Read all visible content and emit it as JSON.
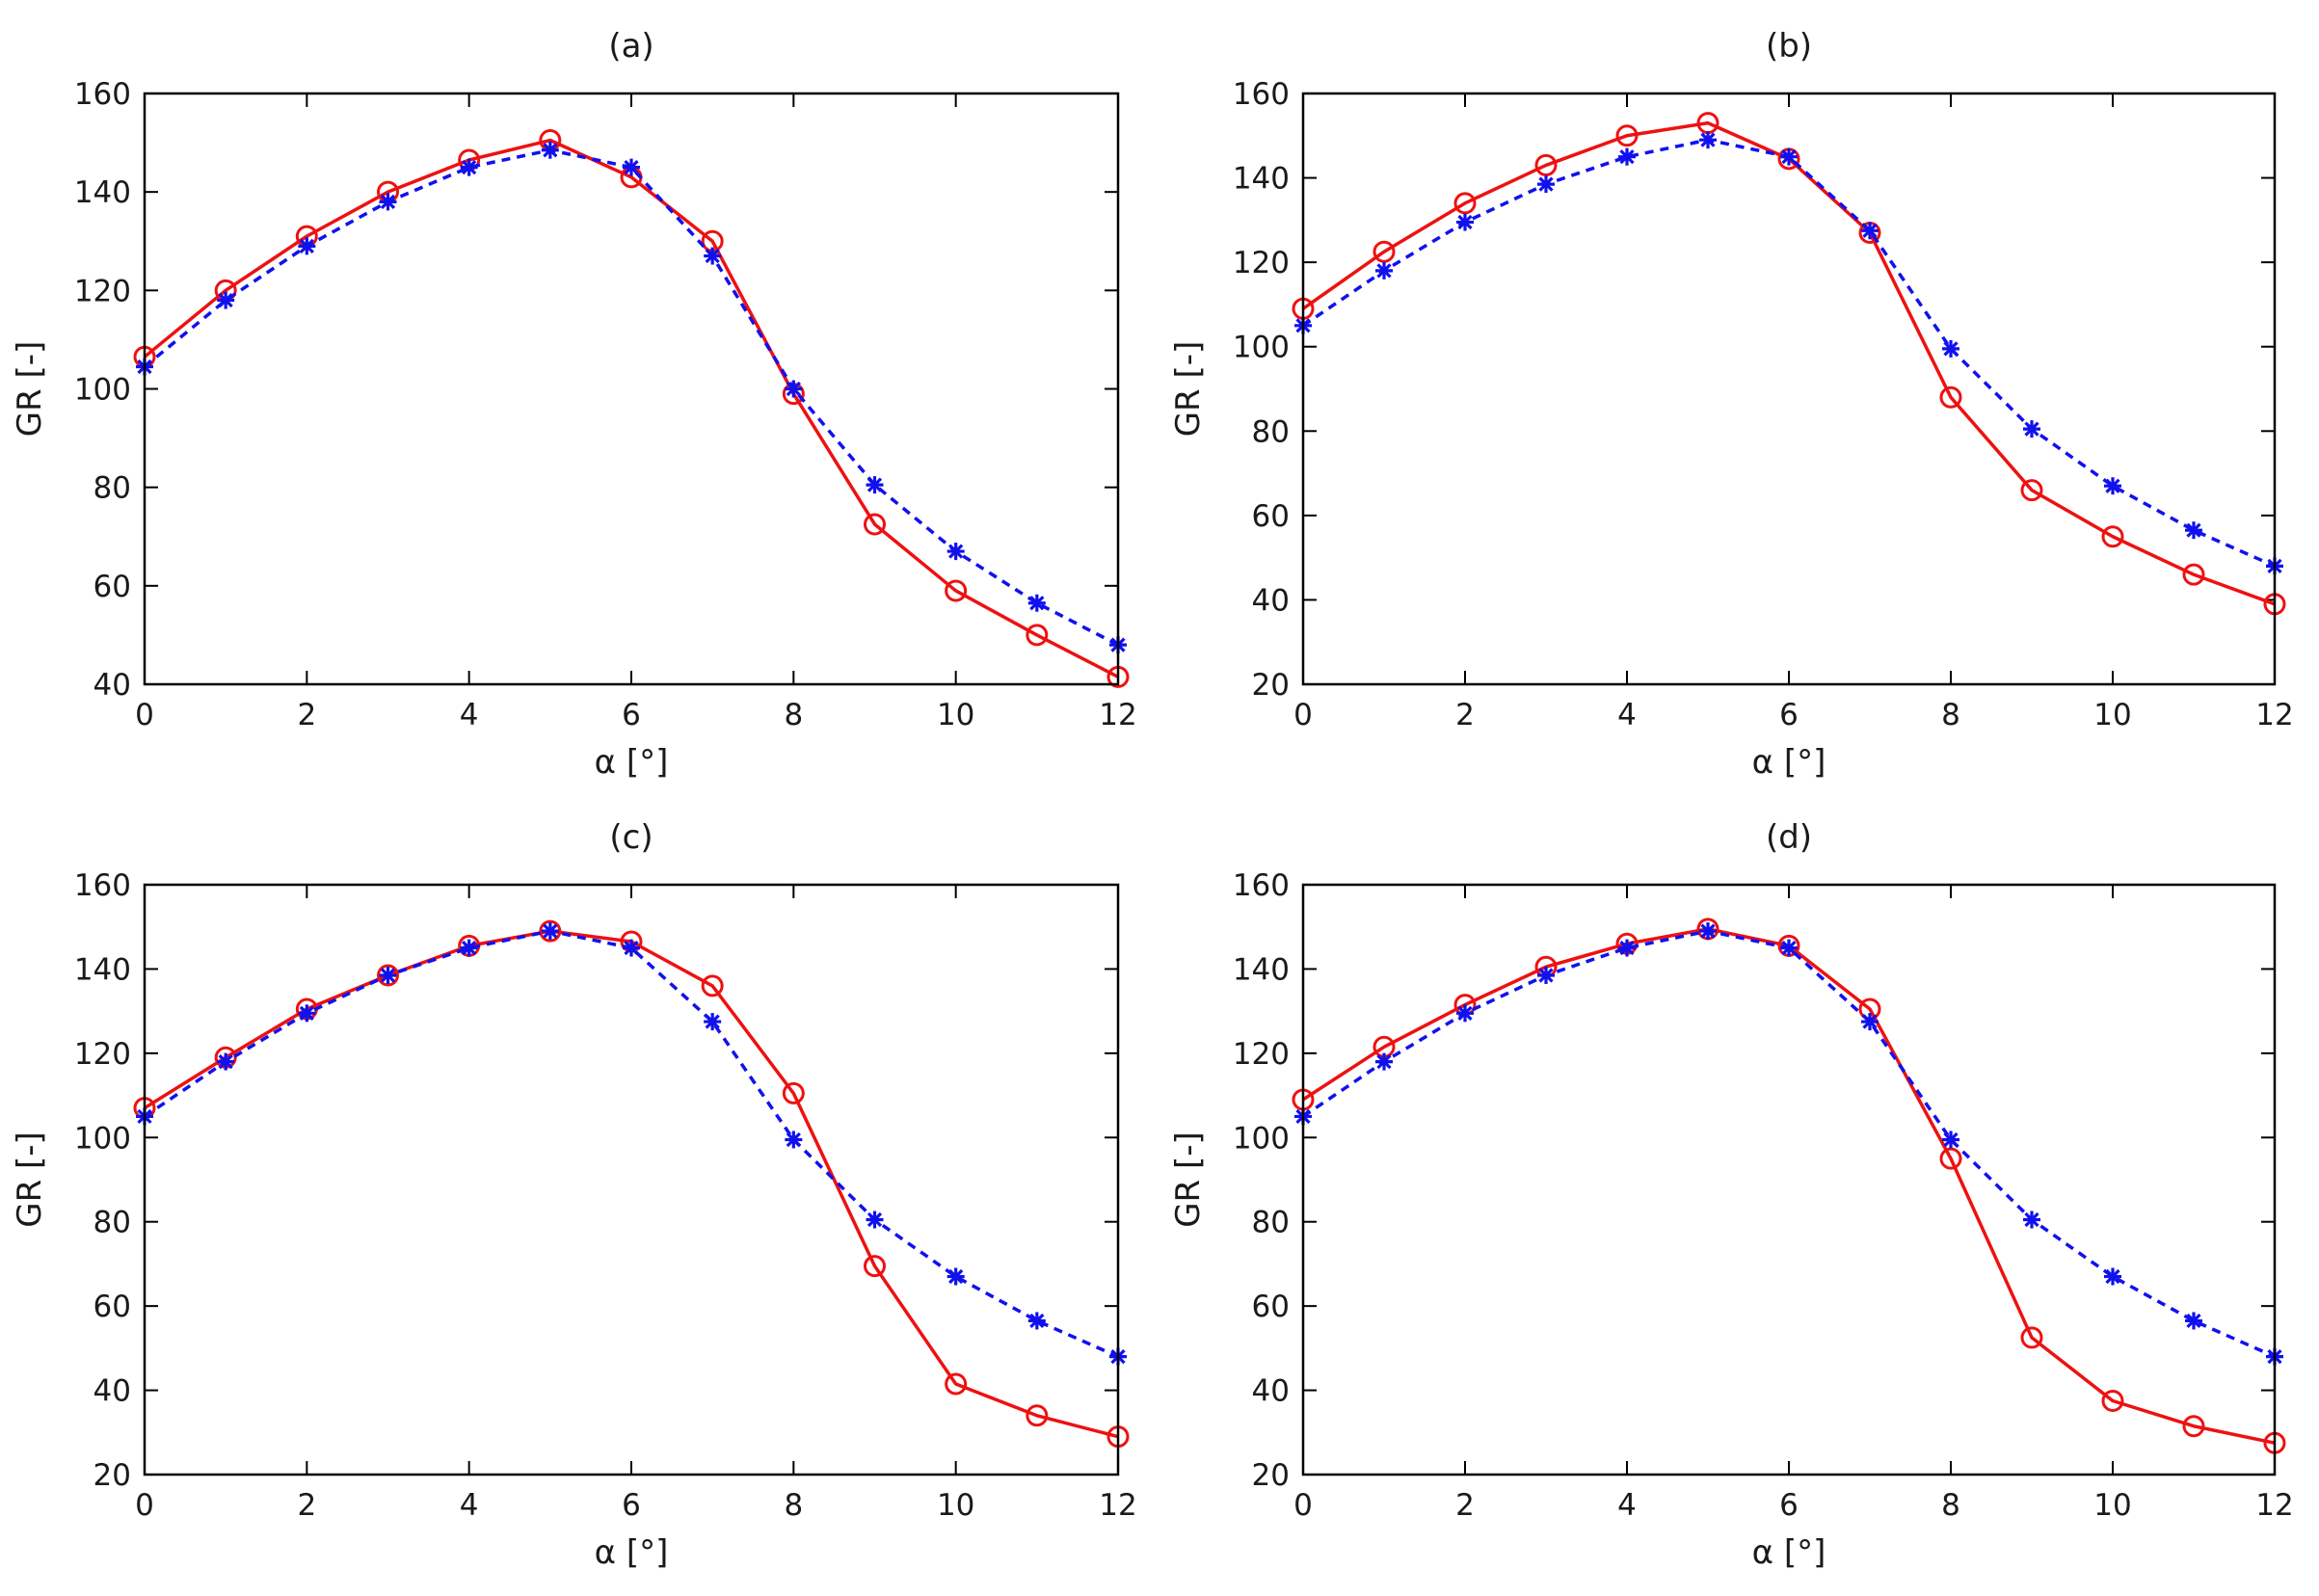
{
  "figure": {
    "colors": {
      "series1": "#ee1111",
      "series2": "#1111ee",
      "axis": "#000000"
    }
  },
  "chart_data": [
    {
      "type": "line",
      "title": "(a)",
      "xlabel": "α [°]",
      "ylabel": "GR [-]",
      "xlim": [
        0,
        12
      ],
      "ylim": [
        40,
        160
      ],
      "xticks": [
        0,
        2,
        4,
        6,
        8,
        10,
        12
      ],
      "yticks": [
        40,
        60,
        80,
        100,
        120,
        140,
        160
      ],
      "x": [
        0,
        1,
        2,
        3,
        4,
        5,
        6,
        7,
        8,
        9,
        10,
        11,
        12
      ],
      "series": [
        {
          "style": "solid-circle",
          "color": "#ee1111",
          "values": [
            106.5,
            120,
            131,
            140,
            146.5,
            150.5,
            143,
            130,
            99,
            72.5,
            59,
            50,
            41.5
          ]
        },
        {
          "style": "dashed-asterisk",
          "color": "#1111ee",
          "values": [
            104.5,
            118,
            129,
            138,
            145,
            148.5,
            145,
            127,
            100,
            80.5,
            67,
            56.5,
            48
          ]
        }
      ]
    },
    {
      "type": "line",
      "title": "(b)",
      "xlabel": "α [°]",
      "ylabel": "GR [-]",
      "xlim": [
        0,
        12
      ],
      "ylim": [
        20,
        160
      ],
      "xticks": [
        0,
        2,
        4,
        6,
        8,
        10,
        12
      ],
      "yticks": [
        20,
        40,
        60,
        80,
        100,
        120,
        140,
        160
      ],
      "x": [
        0,
        1,
        2,
        3,
        4,
        5,
        6,
        7,
        8,
        9,
        10,
        11,
        12
      ],
      "series": [
        {
          "style": "solid-circle",
          "color": "#ee1111",
          "values": [
            109,
            122.5,
            134,
            143,
            150,
            153,
            144.5,
            127,
            88,
            66,
            55,
            46,
            39
          ]
        },
        {
          "style": "dashed-asterisk",
          "color": "#1111ee",
          "values": [
            105,
            118,
            129.5,
            138.5,
            145,
            149,
            145,
            127.5,
            99.5,
            80.5,
            67,
            56.5,
            48
          ]
        }
      ]
    },
    {
      "type": "line",
      "title": "(c)",
      "xlabel": "α [°]",
      "ylabel": "GR [-]",
      "xlim": [
        0,
        12
      ],
      "ylim": [
        20,
        160
      ],
      "xticks": [
        0,
        2,
        4,
        6,
        8,
        10,
        12
      ],
      "yticks": [
        20,
        40,
        60,
        80,
        100,
        120,
        140,
        160
      ],
      "x": [
        0,
        1,
        2,
        3,
        4,
        5,
        6,
        7,
        8,
        9,
        10,
        11,
        12
      ],
      "series": [
        {
          "style": "solid-circle",
          "color": "#ee1111",
          "values": [
            107,
            119,
            130.5,
            138.5,
            145.5,
            149,
            146.5,
            136,
            110.5,
            69.5,
            41.5,
            34,
            29
          ]
        },
        {
          "style": "dashed-asterisk",
          "color": "#1111ee",
          "values": [
            105,
            118,
            129.5,
            138.5,
            145,
            149,
            145,
            127.5,
            99.5,
            80.5,
            67,
            56.5,
            48
          ]
        }
      ]
    },
    {
      "type": "line",
      "title": "(d)",
      "xlabel": "α [°]",
      "ylabel": "GR [-]",
      "xlim": [
        0,
        12
      ],
      "ylim": [
        20,
        160
      ],
      "xticks": [
        0,
        2,
        4,
        6,
        8,
        10,
        12
      ],
      "yticks": [
        20,
        40,
        60,
        80,
        100,
        120,
        140,
        160
      ],
      "x": [
        0,
        1,
        2,
        3,
        4,
        5,
        6,
        7,
        8,
        9,
        10,
        11,
        12
      ],
      "series": [
        {
          "style": "solid-circle",
          "color": "#ee1111",
          "values": [
            109,
            121.5,
            131.5,
            140.5,
            146,
            149.5,
            145.5,
            130.5,
            95,
            52.5,
            37.5,
            31.5,
            27.5
          ]
        },
        {
          "style": "dashed-asterisk",
          "color": "#1111ee",
          "values": [
            105,
            118,
            129.5,
            138.5,
            145,
            149,
            145,
            127.5,
            99.5,
            80.5,
            67,
            56.5,
            48
          ]
        }
      ]
    }
  ]
}
